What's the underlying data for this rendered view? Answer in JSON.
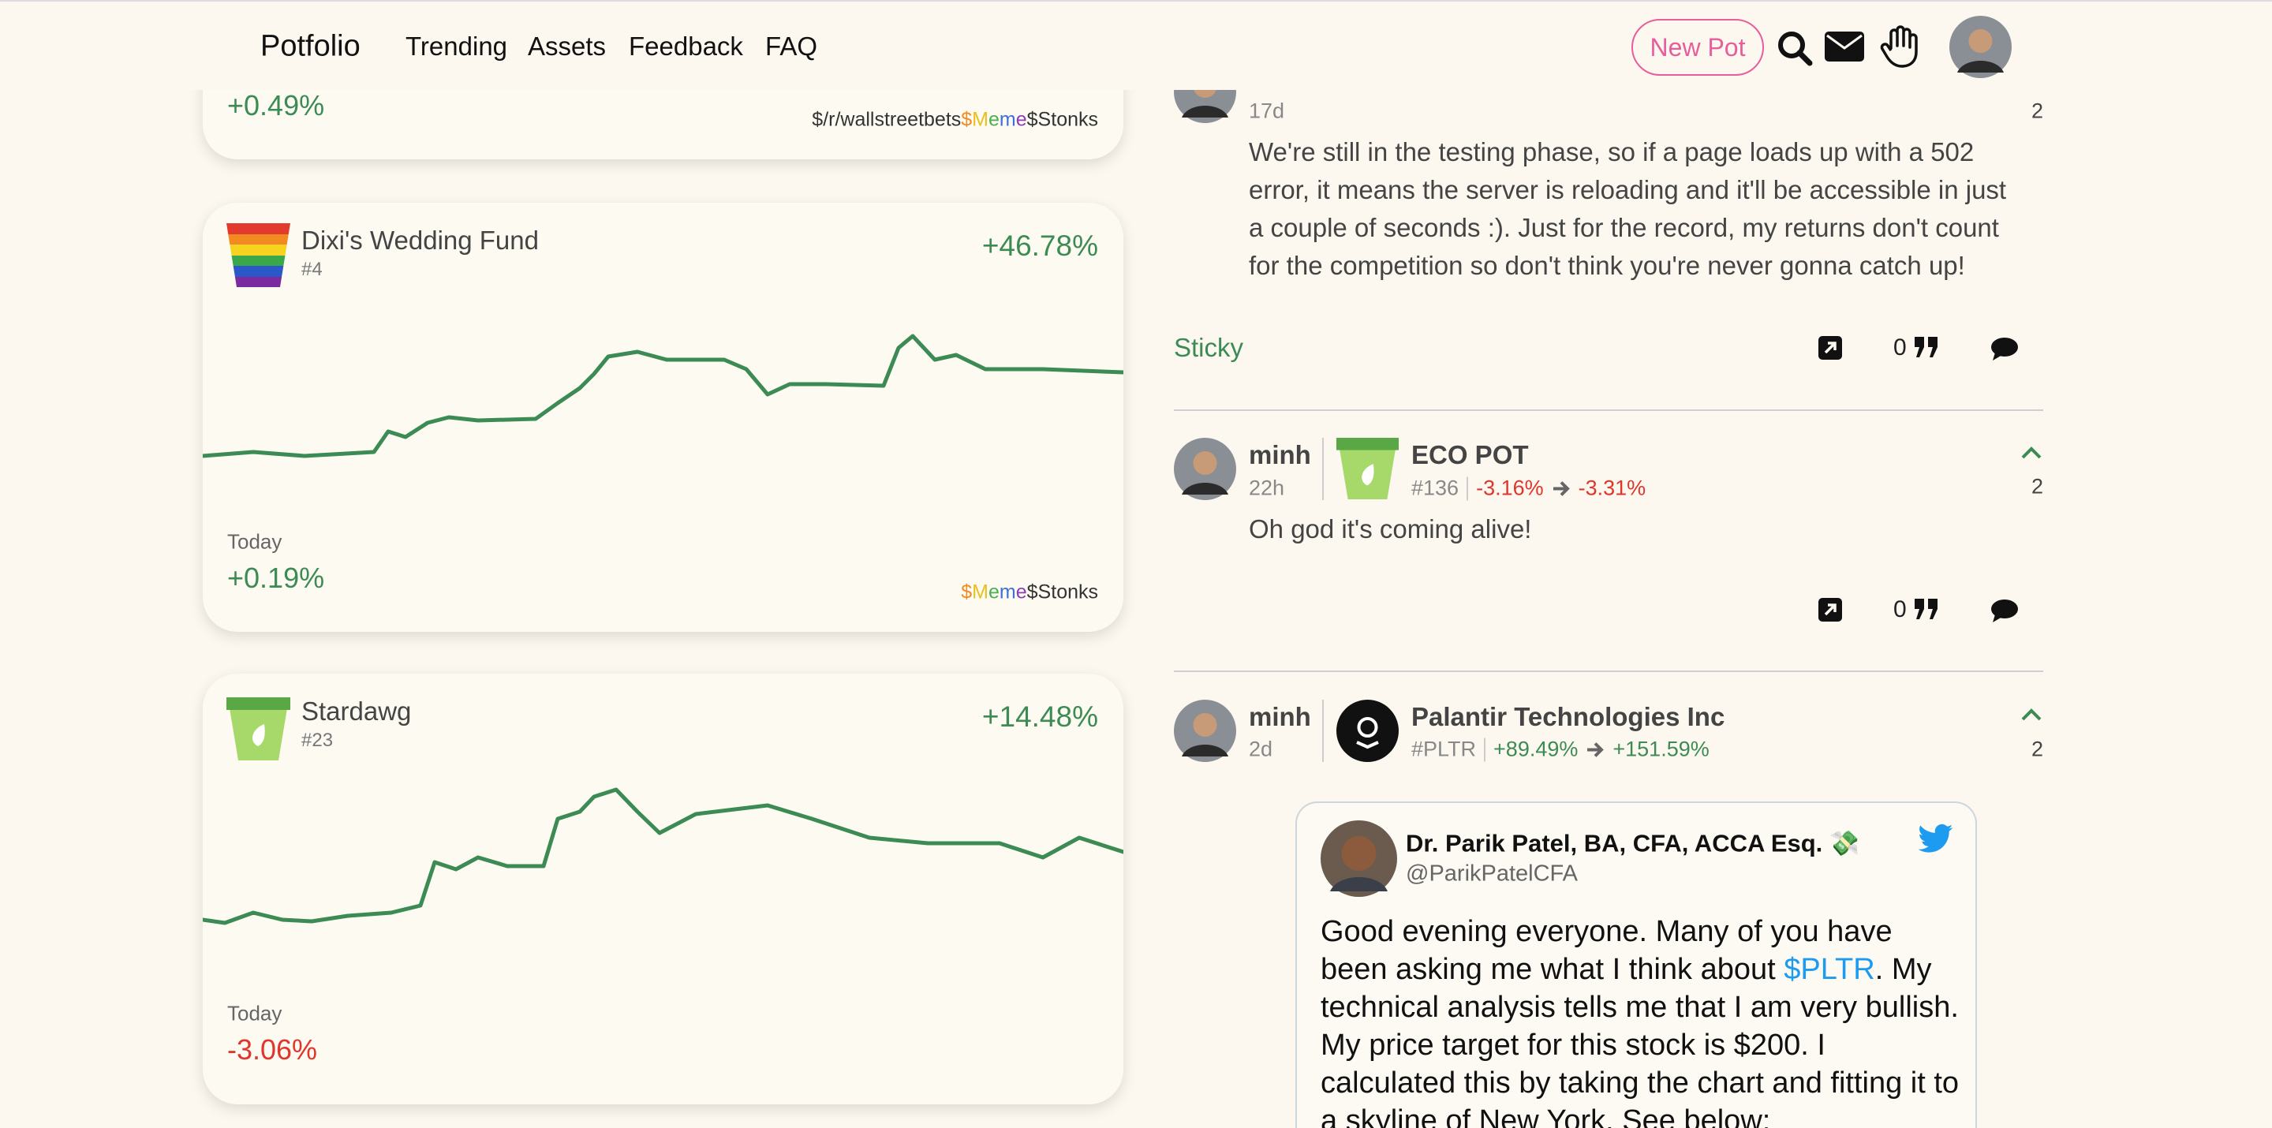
{
  "nav": {
    "brand": "Potfolio",
    "links": [
      "Trending",
      "Assets",
      "Feedback",
      "FAQ"
    ],
    "button": "New Pot"
  },
  "pots": [
    {
      "today_change": "+0.49%",
      "tags": [
        "$/r/wallstreetbets",
        "$Meme$Stonks"
      ]
    },
    {
      "name": "Dixi's Wedding Fund",
      "rank": "#4",
      "total_change": "+46.78%",
      "period": "Today",
      "today_change": "+0.19%",
      "tags": [
        "$Meme$Stonks"
      ]
    },
    {
      "name": "Stardawg",
      "rank": "#23",
      "total_change": "+14.48%",
      "period": "Today",
      "today_change": "-3.06%"
    }
  ],
  "posts": [
    {
      "time": "17d",
      "votes": "2",
      "text": "We're still in the testing phase, so if a page loads up with a 502 error, it means the server is reloading and it'll be accessible in just a couple of seconds :). Just for the record, my returns don't count for the competition so don't think you're never gonna catch up!",
      "label": "Sticky",
      "quotes": "0"
    },
    {
      "user": "minh",
      "time": "22h",
      "pot": "ECO POT",
      "ref": "#136",
      "change_from": "-3.16%",
      "change_to": "-3.31%",
      "votes": "2",
      "text": "Oh god it's coming alive!",
      "quotes": "0"
    },
    {
      "user": "minh",
      "time": "2d",
      "pot": "Palantir Technologies Inc",
      "ref": "#PLTR",
      "change_from": "+89.49%",
      "change_to": "+151.59%",
      "votes": "2",
      "tweet": {
        "name": "Dr. Parik Patel, BA, CFA, ACCA Esq. 💸",
        "handle": "@ParikPatelCFA",
        "text": [
          "Good evening everyone. Many of you have been asking me what I think about ",
          "$PLTR",
          ". My technical analysis tells me that I am very bullish. My price target for this stock is $200. I calculated this by taking the chart and fitting it to a skyline of New York. See below:"
        ]
      }
    }
  ]
}
